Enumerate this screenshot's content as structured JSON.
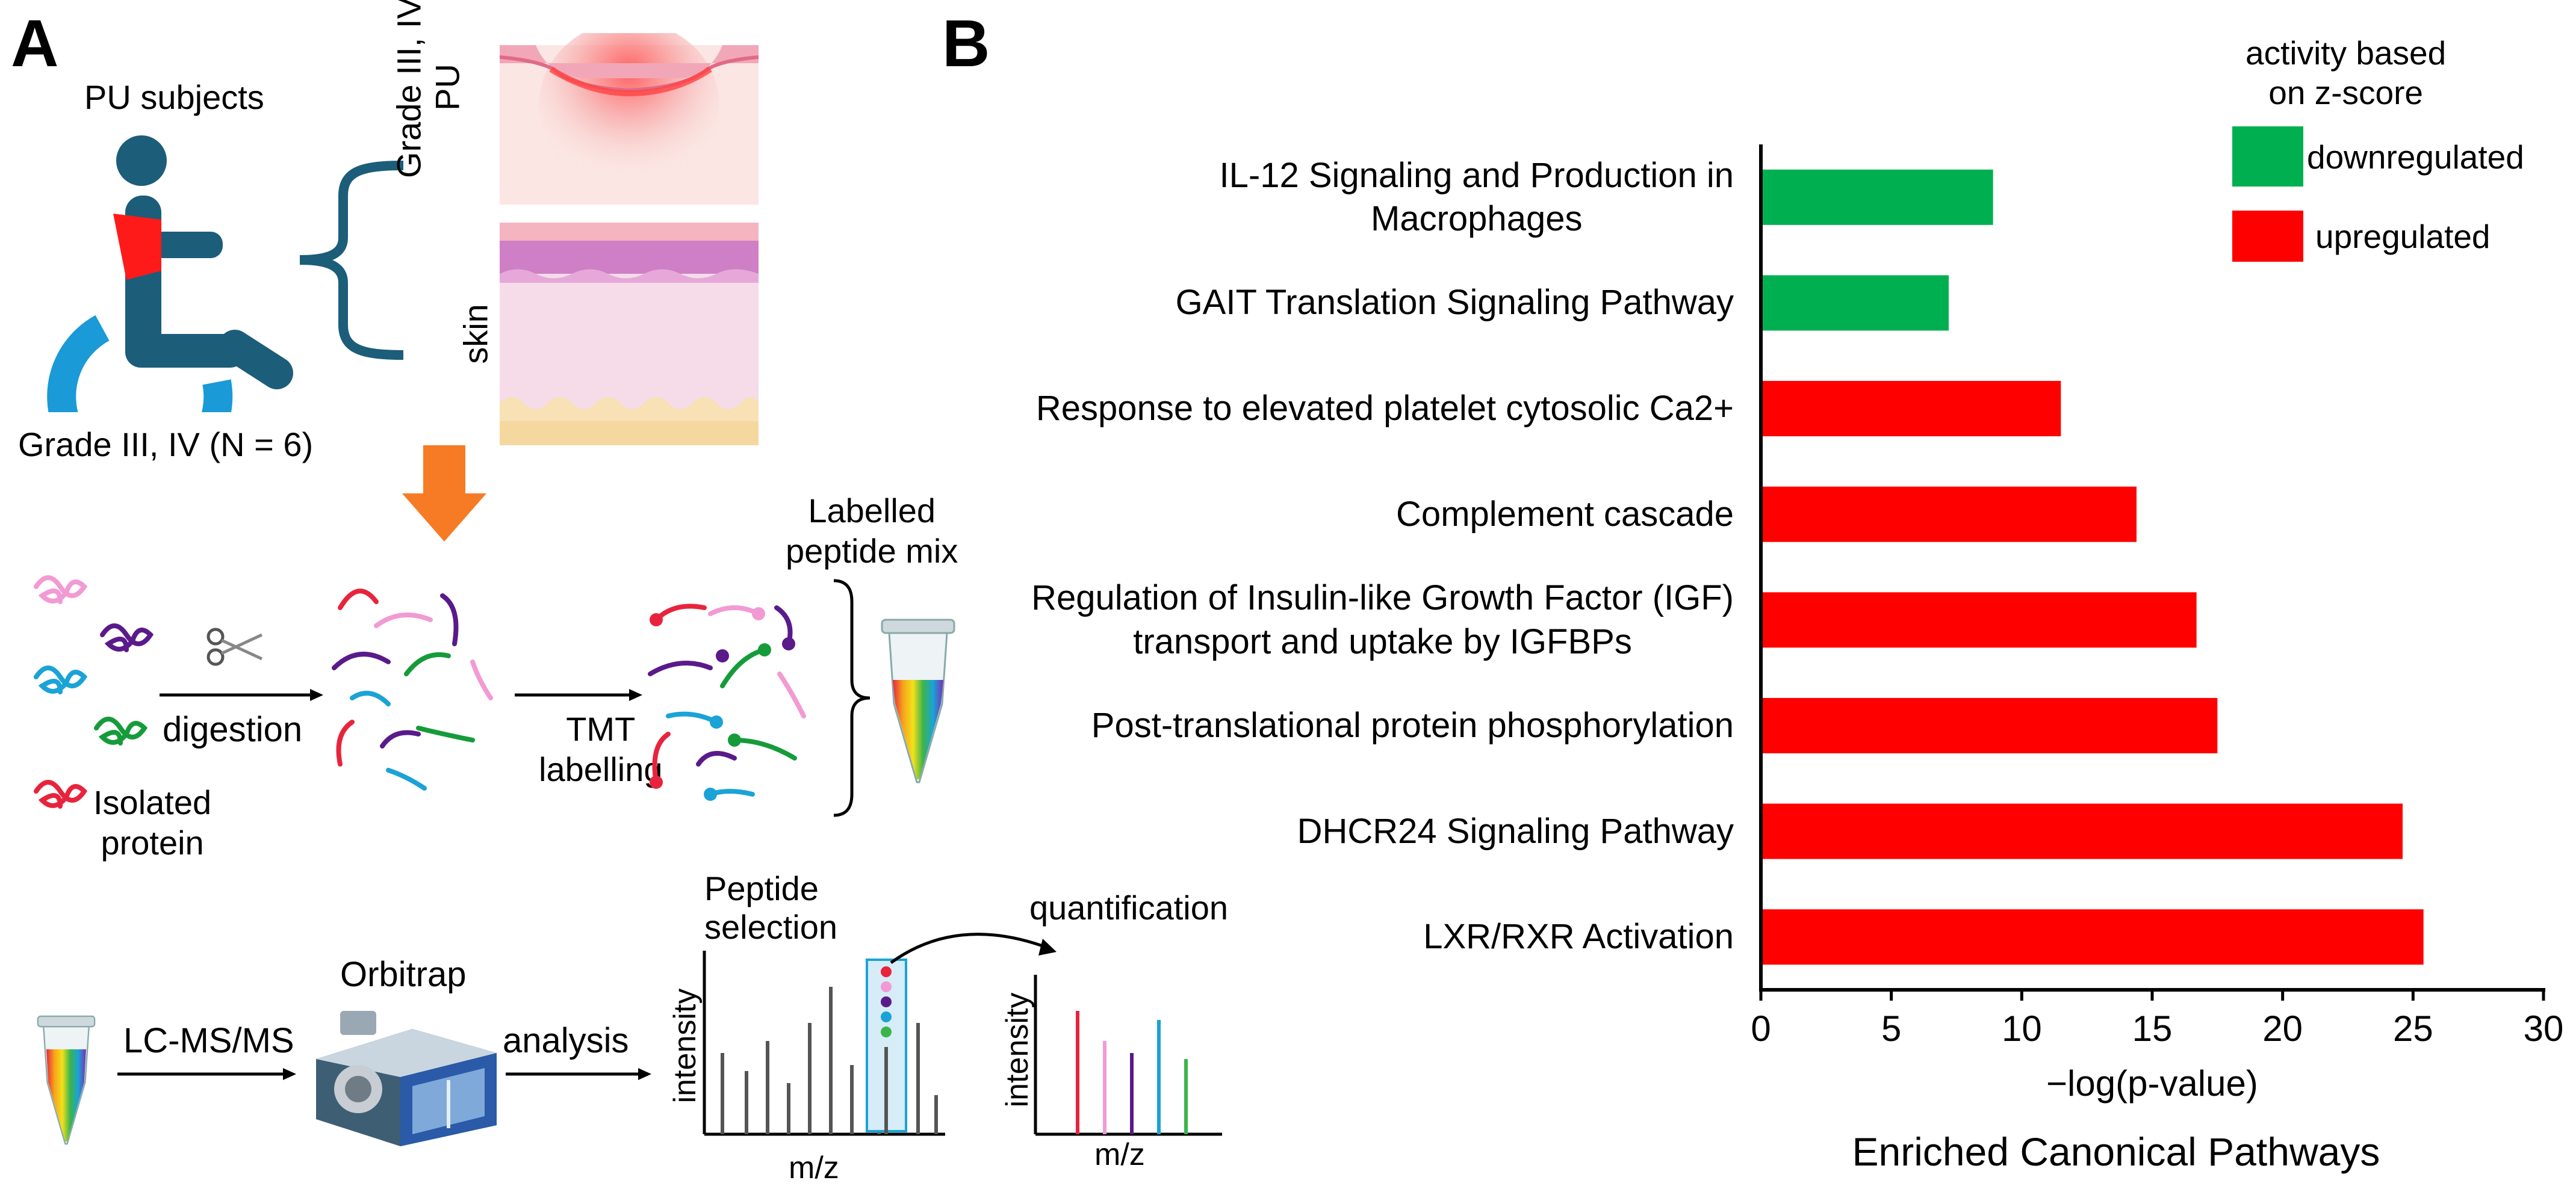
{
  "panel_a": {
    "letter": "A",
    "subjects_label": "PU subjects",
    "grade_label": "Grade III, IV (N = 6)",
    "pu_tissue_label_line1": "Grade III, IV",
    "pu_tissue_label_line2": "PU",
    "skin_label": "skin",
    "digestion_label": "digestion",
    "isolated_label_line1": "Isolated",
    "isolated_label_line2": "protein",
    "tmt_label_line1": "TMT",
    "tmt_label_line2": "labelling",
    "mix_label_line1": "Labelled",
    "mix_label_line2": "peptide mix",
    "lcms_label": "LC-MS/MS",
    "orbitrap_label": "Orbitrap",
    "analysis_label": "analysis",
    "peptide_sel_line1": "Peptide",
    "peptide_sel_line2": "selection",
    "quant_label": "quantification",
    "intensity_label": "intensity",
    "mz_label": "m/z"
  },
  "panel_b": {
    "letter": "B",
    "legend_title_line1": "activity based",
    "legend_title_line2": "on z-score",
    "legend_items": [
      {
        "label": "downregulated",
        "color": "#00b050"
      },
      {
        "label": "upregulated",
        "color": "#ff0000"
      }
    ]
  },
  "chart_data": {
    "type": "bar",
    "orientation": "horizontal",
    "title": "Enriched Canonical Pathways",
    "xlabel": "−log(p-value)",
    "ylabel": "",
    "xlim": [
      0,
      30
    ],
    "xticks": [
      "0",
      "5",
      "10",
      "15",
      "20",
      "25",
      "30"
    ],
    "categories": [
      {
        "line1": "IL-12 Signaling and Production in",
        "line2": "Macrophages"
      },
      {
        "line1": "GAIT Translation Signaling Pathway",
        "line2": ""
      },
      {
        "line1": "Response to elevated platelet cytosolic Ca2+",
        "line2": ""
      },
      {
        "line1": "Complement cascade",
        "line2": ""
      },
      {
        "line1": "Regulation of Insulin-like Growth Factor (IGF)",
        "line2": "transport and uptake by IGFBPs"
      },
      {
        "line1": "Post-translational protein phosphorylation",
        "line2": ""
      },
      {
        "line1": "DHCR24 Signaling Pathway",
        "line2": ""
      },
      {
        "line1": "LXR/RXR Activation",
        "line2": ""
      }
    ],
    "values": [
      8.9,
      7.2,
      11.5,
      14.4,
      16.7,
      17.5,
      24.6,
      25.4
    ],
    "activity": [
      "downregulated",
      "downregulated",
      "upregulated",
      "upregulated",
      "upregulated",
      "upregulated",
      "upregulated",
      "upregulated"
    ],
    "colors": {
      "downregulated": "#00b050",
      "upregulated": "#ff0000"
    }
  }
}
